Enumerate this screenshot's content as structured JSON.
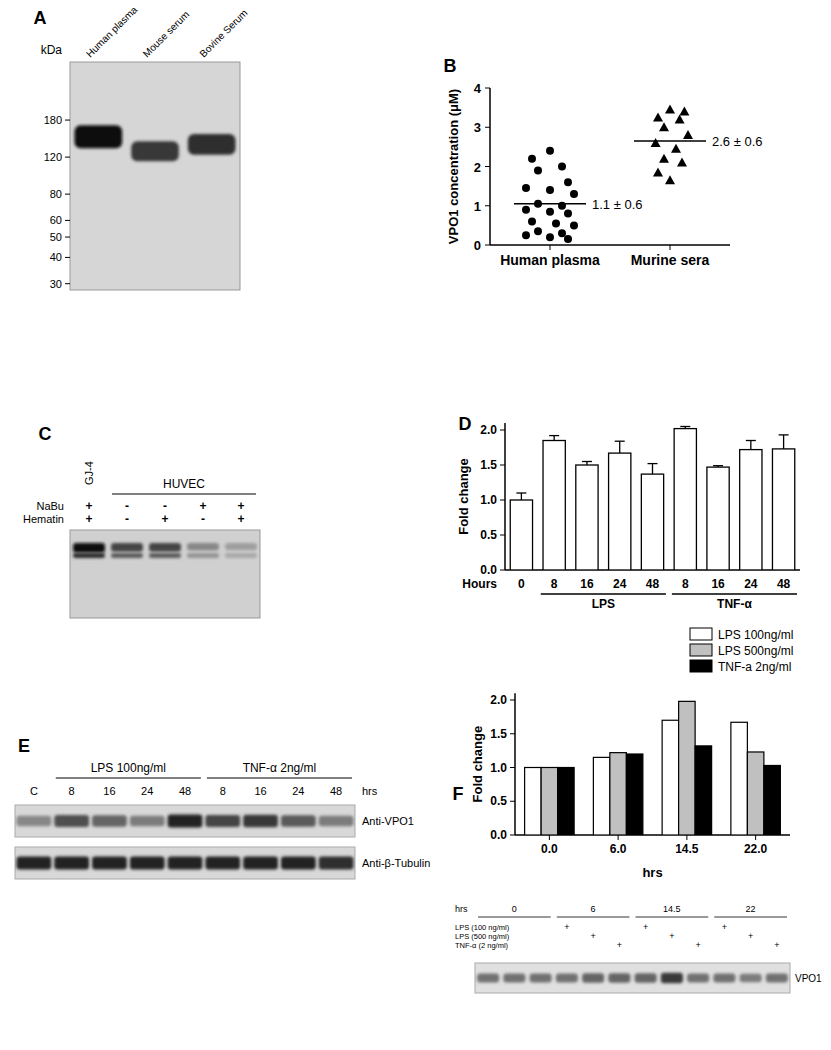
{
  "chart_data": [
    {
      "type": "blot",
      "title": "A",
      "y_label": "kDa",
      "log": "y",
      "ylim": [
        28,
        340
      ],
      "yticks": [
        180,
        120,
        80,
        60,
        50,
        40,
        30
      ],
      "lanes": [
        "Human plasma",
        "Mouse serum",
        "Bovine Serum"
      ],
      "band_kda": [
        150,
        128,
        138
      ],
      "band_intensity": [
        0.95,
        0.75,
        0.8
      ]
    },
    {
      "type": "scatter",
      "title": "B",
      "y_label": "VPO1 concentration (μM)",
      "xlim": [
        0.5,
        2.5
      ],
      "xticks": [
        {
          "value": 1,
          "label": "Human plasma"
        },
        {
          "value": 2,
          "label": "Murine sera"
        }
      ],
      "ylim": [
        0,
        4
      ],
      "yticks": [
        0,
        1,
        2,
        3,
        4
      ],
      "series": [
        {
          "marker": "circle",
          "color": "#000000",
          "x": [
            1.0,
            0.85,
            1.1,
            0.9,
            1.15,
            0.8,
            1.0,
            1.2,
            0.9,
            1.1,
            0.8,
            1.0,
            1.15,
            0.85,
            1.05,
            1.2,
            0.9,
            1.1,
            0.8,
            1.0,
            1.15
          ],
          "values": [
            2.4,
            2.2,
            2.0,
            1.9,
            1.6,
            1.45,
            1.4,
            1.3,
            1.05,
            1.0,
            0.9,
            0.85,
            0.8,
            0.6,
            0.55,
            0.5,
            0.35,
            0.3,
            0.25,
            0.2,
            0.15
          ]
        },
        {
          "marker": "triangle",
          "color": "#000000",
          "x": [
            2.0,
            2.12,
            1.9,
            2.08,
            1.95,
            2.15,
            1.88,
            2.05,
            1.95,
            2.1,
            1.9,
            2.0
          ],
          "values": [
            3.45,
            3.4,
            3.25,
            3.2,
            3.0,
            2.8,
            2.6,
            2.45,
            2.2,
            2.1,
            1.85,
            1.65
          ]
        }
      ],
      "means": [
        1.05,
        2.65
      ],
      "annotations": [
        "1.1 ± 0.6",
        "2.6 ± 0.6"
      ]
    },
    {
      "type": "blot",
      "title": "C",
      "lanes": [
        "GJ-4",
        null,
        null,
        null,
        null
      ],
      "group_labels": [
        null,
        "HUVEC",
        "HUVEC",
        "HUVEC",
        "HUVEC"
      ],
      "rows": [
        {
          "label": "NaBu",
          "signs": [
            "+",
            "-",
            "-",
            "+",
            "+"
          ]
        },
        {
          "label": "Hematin",
          "signs": [
            "+",
            "-",
            "+",
            "-",
            "+"
          ]
        }
      ],
      "band_intensity": [
        0.95,
        0.7,
        0.7,
        0.4,
        0.3
      ]
    },
    {
      "type": "bar",
      "title": "D",
      "y_label": "Fold change",
      "x_label": "Hours",
      "color": "#ffffff",
      "categories": [
        "0",
        "8",
        "16",
        "24",
        "48",
        "8",
        "16",
        "24",
        "48"
      ],
      "group_labels": [
        null,
        "LPS",
        "LPS",
        "LPS",
        "LPS",
        "TNF-α",
        "TNF-α",
        "TNF-α",
        "TNF-α"
      ],
      "values": [
        1.0,
        1.85,
        1.5,
        1.67,
        1.37,
        2.02,
        1.47,
        1.72,
        1.73
      ],
      "errors": [
        0.1,
        0.07,
        0.05,
        0.17,
        0.15,
        0.03,
        0.02,
        0.13,
        0.2
      ],
      "ylim": [
        0,
        2.1
      ],
      "yticks": [
        {
          "value": 0,
          "label": "0.0"
        },
        {
          "value": 0.5,
          "label": "0.5"
        },
        {
          "value": 1,
          "label": "1.0"
        },
        {
          "value": 1.5,
          "label": "1.5"
        },
        {
          "value": 2,
          "label": "2.0"
        }
      ]
    },
    {
      "type": "blot",
      "title": "E",
      "lanes": [
        "C",
        "8",
        "16",
        "24",
        "48",
        "8",
        "16",
        "24",
        "48"
      ],
      "lane_unit": "hrs",
      "group_labels": [
        null,
        "LPS 100ng/ml",
        "LPS 100ng/ml",
        "LPS 100ng/ml",
        "LPS 100ng/ml",
        "TNF-α 2ng/ml",
        "TNF-α 2ng/ml",
        "TNF-α 2ng/ml",
        "TNF-α 2ng/ml"
      ],
      "rows": [
        {
          "label": "Anti-VPO1",
          "band_intensity": [
            0.4,
            0.65,
            0.55,
            0.45,
            0.85,
            0.7,
            0.75,
            0.6,
            0.45
          ]
        },
        {
          "label": "Anti-β-Tubulin",
          "band_intensity": [
            0.85,
            0.85,
            0.85,
            0.85,
            0.85,
            0.85,
            0.85,
            0.85,
            0.8
          ]
        }
      ]
    },
    {
      "type": "bar",
      "title": "F",
      "y_label": "Fold change",
      "x_label": "hrs",
      "legend": "upper right",
      "categories": [
        "0.0",
        "6.0",
        "14.5",
        "22.0"
      ],
      "series": [
        {
          "name": "LPS 100ng/ml",
          "color": "#ffffff",
          "values": [
            1.0,
            1.15,
            1.7,
            1.67
          ]
        },
        {
          "name": "LPS 500ng/ml",
          "color": "#c0c0c0",
          "values": [
            1.0,
            1.22,
            1.98,
            1.23
          ]
        },
        {
          "name": "TNF-a 2ng/ml",
          "color": "#000000",
          "values": [
            1.0,
            1.2,
            1.32,
            1.03
          ]
        }
      ],
      "ylim": [
        0,
        2.1
      ],
      "yticks": [
        {
          "value": 0,
          "label": "0.0"
        },
        {
          "value": 0.5,
          "label": "0.5"
        },
        {
          "value": 1,
          "label": "1.0"
        },
        {
          "value": 1.5,
          "label": "1.5"
        },
        {
          "value": 2,
          "label": "2.0"
        }
      ]
    },
    {
      "type": "blot",
      "lane_unit": "hrs",
      "group_labels": [
        "0",
        "0",
        "0",
        "6",
        "6",
        "6",
        "14.5",
        "14.5",
        "14.5",
        "22",
        "22",
        "22"
      ],
      "rows": [
        {
          "label": "LPS (100 ng/ml)",
          "signs": [
            null,
            null,
            null,
            "+",
            null,
            null,
            "+",
            null,
            null,
            "+",
            null,
            null
          ]
        },
        {
          "label": "LPS (500 ng/ml)",
          "signs": [
            null,
            null,
            null,
            null,
            "+",
            null,
            null,
            "+",
            null,
            null,
            "+",
            null
          ]
        },
        {
          "label": "TNF-α (2 ng/ml)",
          "signs": [
            null,
            null,
            null,
            null,
            null,
            "+",
            null,
            null,
            "+",
            null,
            null,
            "+"
          ]
        }
      ],
      "band_label": "VPO1",
      "band_intensity": [
        0.5,
        0.5,
        0.5,
        0.5,
        0.55,
        0.55,
        0.55,
        0.75,
        0.5,
        0.5,
        0.45,
        0.5
      ]
    }
  ]
}
